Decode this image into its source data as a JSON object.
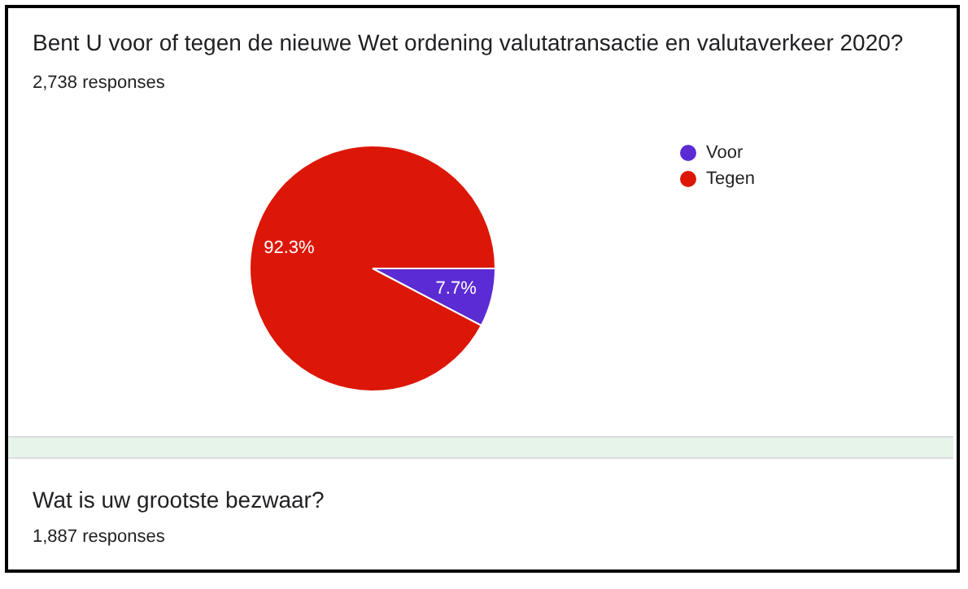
{
  "chart_data": {
    "type": "pie",
    "title": "Bent U voor of tegen de nieuwe Wet ordening valutatransactie en valutaverkeer 2020?",
    "subtitle": "2,738 responses",
    "categories": [
      "Voor",
      "Tegen"
    ],
    "values": [
      7.7,
      92.3
    ],
    "colors": [
      "#5b2bd4",
      "#dc1708"
    ],
    "value_labels": [
      "7.7%",
      "92.3%"
    ],
    "legend": "right",
    "annotations": [
      "Wat is uw grootste bezwaar?",
      "1,887 responses"
    ]
  }
}
